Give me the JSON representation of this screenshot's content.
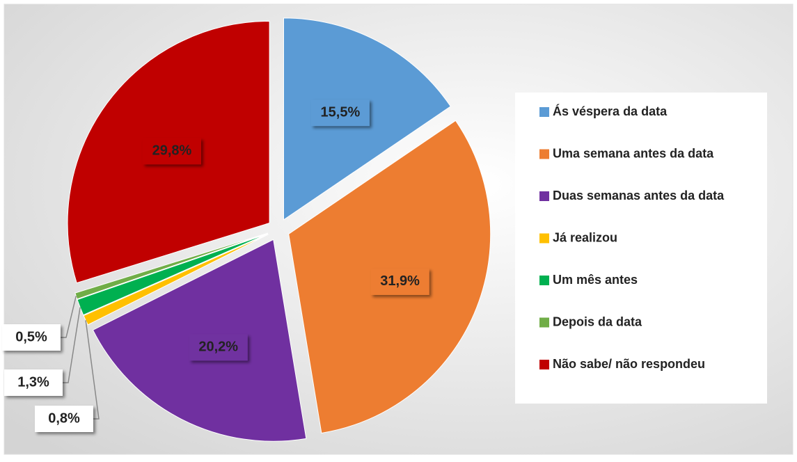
{
  "chart_data": {
    "type": "pie",
    "categories": [
      "Ás véspera da data",
      "Uma semana antes da data",
      "Duas semanas antes da data",
      "Já realizou",
      "Um mês antes",
      "Depois da data",
      "Não sabe/ não respondeu"
    ],
    "values": [
      15.5,
      31.9,
      20.2,
      0.8,
      1.3,
      0.5,
      29.8
    ],
    "value_labels": [
      "15,5%",
      "31,9%",
      "20,2%",
      "0,8%",
      "1,3%",
      "0,5%",
      "29,8%"
    ],
    "colors": [
      "#5B9BD5",
      "#ED7D31",
      "#7030A0",
      "#FFC000",
      "#00B050",
      "#70AD47",
      "#C00000"
    ],
    "legend": "right"
  }
}
